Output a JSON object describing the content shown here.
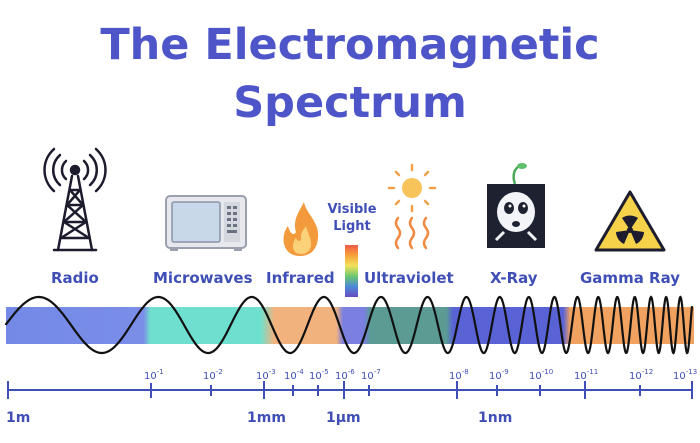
{
  "title_line1": "The Electromagnetic",
  "title_line2": "Spectrum",
  "bands": [
    {
      "label": "Radio",
      "icon": "radio-tower-icon"
    },
    {
      "label": "Microwaves",
      "icon": "microwave-oven-icon"
    },
    {
      "label": "Infrared",
      "icon": "flame-icon"
    },
    {
      "label": "Visible Light",
      "icon": "color-bar-icon"
    },
    {
      "label": "Ultraviolet",
      "icon": "sun-icon"
    },
    {
      "label": "X-Ray",
      "icon": "xray-skull-icon"
    },
    {
      "label": "Gamma Ray",
      "icon": "radiation-warning-icon"
    }
  ],
  "visible_line1": "Visible",
  "visible_line2": "Light",
  "scale_ticks": [
    {
      "base": "10",
      "exp": "-1"
    },
    {
      "base": "10",
      "exp": "-2"
    },
    {
      "base": "10",
      "exp": "-3"
    },
    {
      "base": "10",
      "exp": "-4"
    },
    {
      "base": "10",
      "exp": "-5"
    },
    {
      "base": "10",
      "exp": "-6"
    },
    {
      "base": "10",
      "exp": "-7"
    },
    {
      "base": "10",
      "exp": "-8"
    },
    {
      "base": "10",
      "exp": "-9"
    },
    {
      "base": "10",
      "exp": "-10"
    },
    {
      "base": "10",
      "exp": "-11"
    },
    {
      "base": "10",
      "exp": "-12"
    },
    {
      "base": "10",
      "exp": "-13"
    }
  ],
  "units": [
    "1m",
    "1mm",
    "1µm",
    "1nm"
  ],
  "colors": {
    "title": "#4d55c8",
    "label": "#3f4fb5",
    "radio": "#7a8ee8",
    "microwave": "#6fe0cf",
    "infrared": "#f2b27e",
    "ultraviolet": "#5b9b94",
    "xray": "#5a63d6",
    "gamma": "#f2a260"
  }
}
